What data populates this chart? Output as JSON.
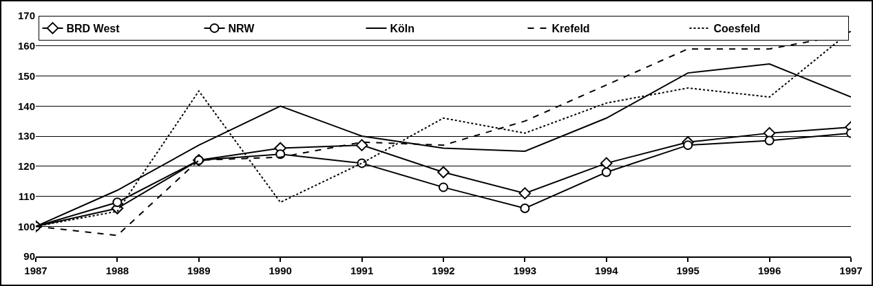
{
  "chart_data": {
    "type": "line",
    "categories": [
      "1987",
      "1988",
      "1989",
      "1990",
      "1991",
      "1992",
      "1993",
      "1994",
      "1995",
      "1996",
      "1997"
    ],
    "ylim": [
      90,
      170
    ],
    "yticks": [
      90,
      100,
      110,
      120,
      130,
      140,
      150,
      160,
      170
    ],
    "grid": "y",
    "legend": "top",
    "series": [
      {
        "name": "BRD West",
        "color": "#000000",
        "marker": "diamond",
        "line_style": "solid",
        "values": [
          100,
          106,
          122,
          126,
          127,
          118,
          111,
          121,
          128,
          131,
          133
        ]
      },
      {
        "name": "NRW",
        "color": "#000000",
        "marker": "circle",
        "line_style": "solid",
        "values": [
          100,
          108,
          122,
          124,
          121,
          113,
          106,
          118,
          127,
          128.5,
          131
        ]
      },
      {
        "name": "Köln",
        "color": "#000000",
        "marker": "none",
        "line_style": "solid",
        "values": [
          100,
          112,
          127,
          140,
          130,
          126,
          125,
          136,
          151,
          154,
          143
        ]
      },
      {
        "name": "Krefeld",
        "color": "#000000",
        "marker": "none",
        "line_style": "dashed",
        "values": [
          100,
          97,
          122,
          123,
          128,
          127,
          135,
          147,
          159,
          159,
          164
        ]
      },
      {
        "name": "Coesfeld",
        "color": "#000000",
        "marker": "none",
        "line_style": "dotted",
        "values": [
          100,
          105,
          145,
          108,
          121,
          136,
          131,
          141,
          146,
          143,
          165
        ]
      }
    ]
  }
}
